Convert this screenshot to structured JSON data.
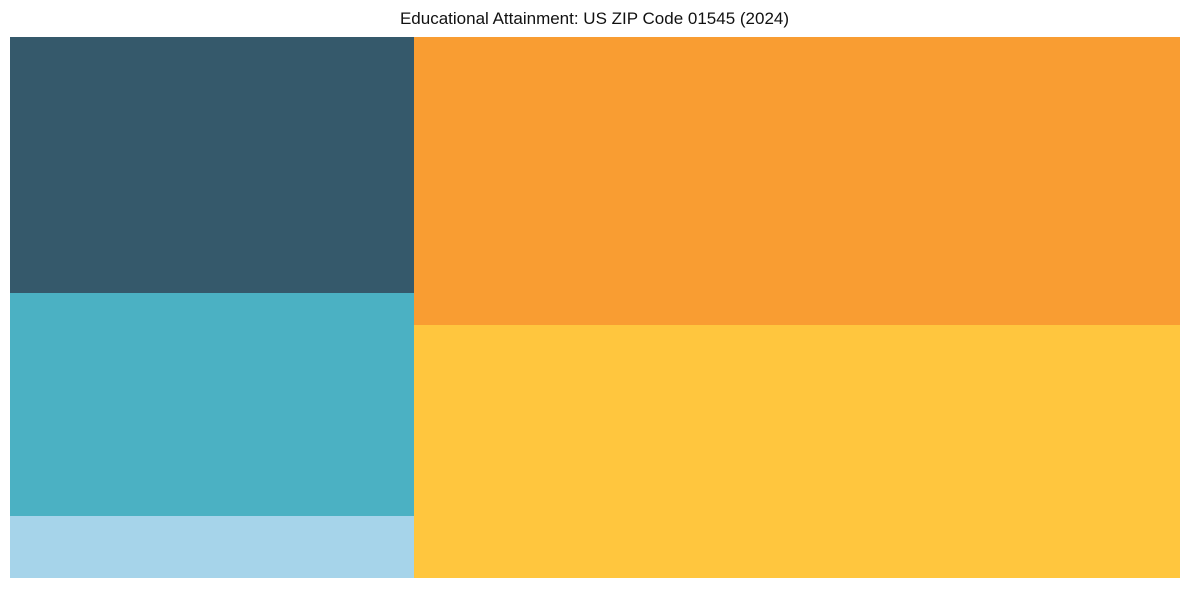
{
  "title": "Educational Attainment: US ZIP Code 01545 (2024)",
  "chart_data": {
    "type": "treemap",
    "title": "Educational Attainment: US ZIP Code 01545 (2024)",
    "labels_visible": false,
    "legend": "none",
    "note": "Five unlabeled flat-color tiles; shares estimated from relative tile areas",
    "segments": [
      {
        "name": "orange-segment",
        "color": "#F99D32",
        "share_pct": 34.9,
        "column": "right",
        "row": 0,
        "column_width_frac": 0.655,
        "height_frac_of_column": 0.532
      },
      {
        "name": "yellow-segment",
        "color": "#FFC63E",
        "share_pct": 30.6,
        "column": "right",
        "row": 1,
        "column_width_frac": 0.655,
        "height_frac_of_column": 0.468
      },
      {
        "name": "dark-teal-segment",
        "color": "#35596B",
        "share_pct": 16.3,
        "column": "left",
        "row": 0,
        "column_width_frac": 0.345,
        "height_frac_of_column": 0.473
      },
      {
        "name": "teal-segment",
        "color": "#4BB1C3",
        "share_pct": 14.2,
        "column": "left",
        "row": 1,
        "column_width_frac": 0.345,
        "height_frac_of_column": 0.411
      },
      {
        "name": "light-blue-segment",
        "color": "#A6D4EA",
        "share_pct": 4.0,
        "column": "left",
        "row": 2,
        "column_width_frac": 0.345,
        "height_frac_of_column": 0.116
      }
    ],
    "background_color": "#FFFFFF",
    "title_color": "#111111"
  }
}
